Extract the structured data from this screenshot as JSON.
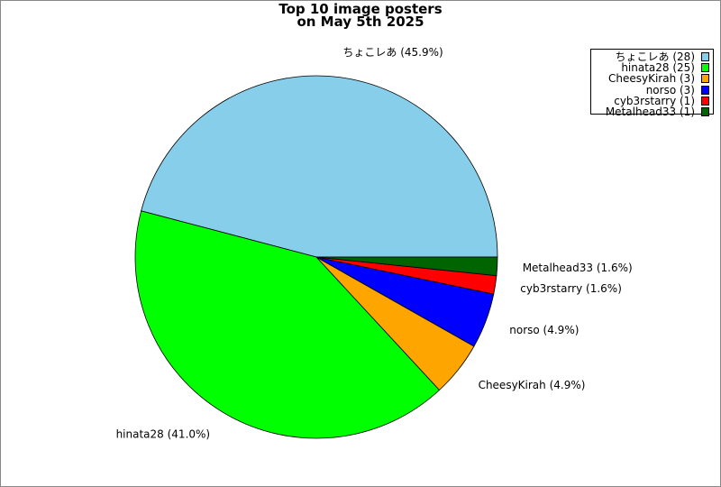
{
  "chart_data": {
    "type": "pie",
    "title_lines": [
      "Top 10 image posters",
      "on May 5th 2025"
    ],
    "series": [
      {
        "name": "ちょこレあ",
        "value": 28,
        "percent_label": "45.9%",
        "color": "#87CEEB"
      },
      {
        "name": "hinata28",
        "value": 25,
        "percent_label": "41.0%",
        "color": "#00FF00"
      },
      {
        "name": "CheesyKirah",
        "value": 3,
        "percent_label": "4.9%",
        "color": "#FFA500"
      },
      {
        "name": "norso",
        "value": 3,
        "percent_label": "4.9%",
        "color": "#0000FF"
      },
      {
        "name": "cyb3rstarry",
        "value": 1,
        "percent_label": "1.6%",
        "color": "#FF0000"
      },
      {
        "name": "Metalhead33",
        "value": 1,
        "percent_label": "1.6%",
        "color": "#006400"
      }
    ],
    "start_angle_deg": 0,
    "direction": "counterclockwise",
    "legend_placement": "top-right"
  }
}
